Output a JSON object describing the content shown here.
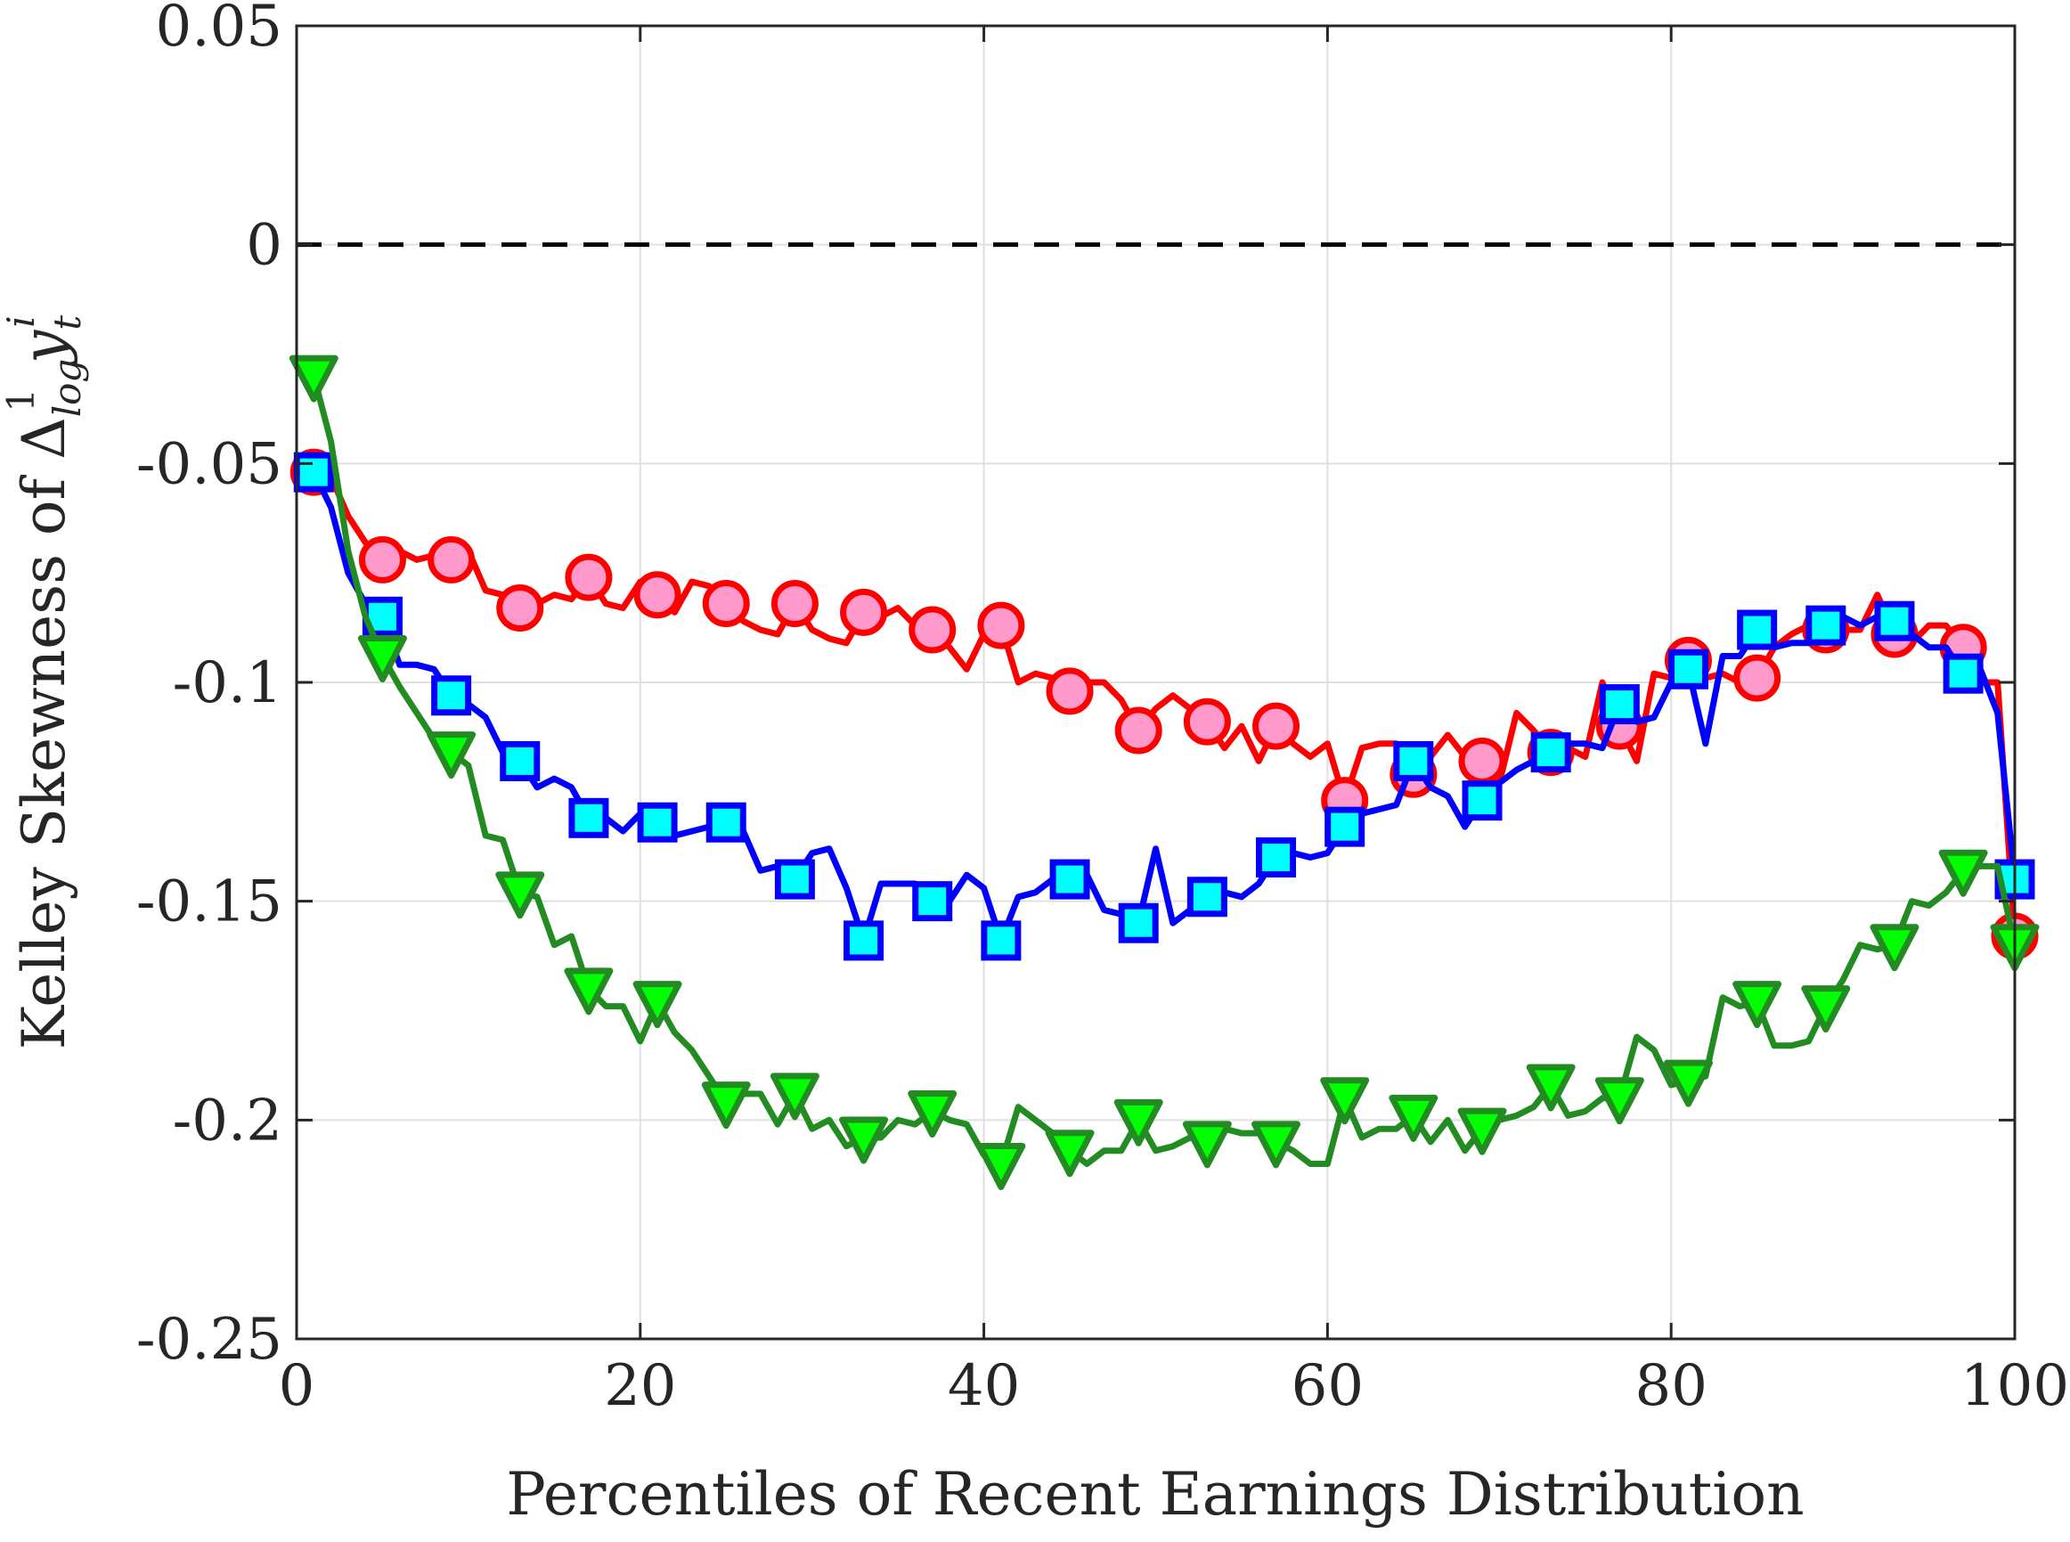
{
  "chart_data": {
    "type": "line",
    "xlabel": "Percentiles of Recent Earnings Distribution",
    "ylabel": {
      "prefix": "Kelley Skewness of Δ",
      "sub": "log",
      "sup": "1",
      "var": "y",
      "var_sub": "t",
      "var_sup": "i"
    },
    "xlim": [
      0,
      100
    ],
    "ylim": [
      -0.25,
      0.05
    ],
    "xticks": [
      0,
      20,
      40,
      60,
      80,
      100
    ],
    "xtick_labels": [
      "0",
      "20",
      "40",
      "60",
      "80",
      "100"
    ],
    "yticks": [
      0.05,
      0,
      -0.05,
      -0.1,
      -0.15,
      -0.2,
      -0.25
    ],
    "ytick_labels": [
      "0.05",
      "0",
      "-0.05",
      "-0.1",
      "-0.15",
      "-0.2",
      "-0.25"
    ],
    "grid": true,
    "reference_line": {
      "y": 0,
      "style": "dashed",
      "color": "#000000"
    },
    "series": [
      {
        "line_color": "#ff0000",
        "marker": "circle",
        "marker_fill": "#ff99cc",
        "marker_edge": "#ff0000",
        "x": [
          1,
          2,
          3,
          4,
          5,
          6,
          7,
          8,
          9,
          10,
          11,
          12,
          13,
          14,
          15,
          16,
          17,
          18,
          19,
          20,
          21,
          22,
          23,
          24,
          25,
          26,
          27,
          28,
          29,
          30,
          31,
          32,
          33,
          34,
          35,
          36,
          37,
          38,
          39,
          40,
          41,
          42,
          43,
          44,
          45,
          46,
          47,
          48,
          49,
          50,
          51,
          52,
          53,
          54,
          55,
          56,
          57,
          58,
          59,
          60,
          61,
          62,
          63,
          64,
          65,
          66,
          67,
          68,
          69,
          70,
          71,
          72,
          73,
          74,
          75,
          76,
          77,
          78,
          79,
          80,
          81,
          82,
          83,
          84,
          85,
          86,
          87,
          88,
          89,
          90,
          91,
          92,
          93,
          94,
          95,
          96,
          97,
          98,
          99,
          100
        ],
        "y": [
          -0.052,
          -0.053,
          -0.062,
          -0.068,
          -0.072,
          -0.07,
          -0.072,
          -0.071,
          -0.072,
          -0.07,
          -0.079,
          -0.08,
          -0.083,
          -0.082,
          -0.08,
          -0.081,
          -0.076,
          -0.082,
          -0.083,
          -0.077,
          -0.08,
          -0.084,
          -0.077,
          -0.078,
          -0.082,
          -0.086,
          -0.088,
          -0.089,
          -0.082,
          -0.088,
          -0.09,
          -0.091,
          -0.084,
          -0.085,
          -0.083,
          -0.087,
          -0.088,
          -0.092,
          -0.097,
          -0.089,
          -0.087,
          -0.1,
          -0.098,
          -0.099,
          -0.102,
          -0.1,
          -0.1,
          -0.104,
          -0.111,
          -0.106,
          -0.103,
          -0.106,
          -0.109,
          -0.115,
          -0.11,
          -0.118,
          -0.11,
          -0.114,
          -0.117,
          -0.114,
          -0.127,
          -0.115,
          -0.114,
          -0.114,
          -0.121,
          -0.117,
          -0.112,
          -0.117,
          -0.118,
          -0.123,
          -0.107,
          -0.111,
          -0.116,
          -0.115,
          -0.117,
          -0.1,
          -0.11,
          -0.118,
          -0.098,
          -0.099,
          -0.095,
          -0.099,
          -0.098,
          -0.1,
          -0.099,
          -0.092,
          -0.089,
          -0.087,
          -0.088,
          -0.088,
          -0.088,
          -0.08,
          -0.089,
          -0.091,
          -0.087,
          -0.087,
          -0.092,
          -0.1,
          -0.1,
          -0.158
        ]
      },
      {
        "line_color": "#0000ff",
        "marker": "square",
        "marker_fill": "#00ffff",
        "marker_edge": "#0000ff",
        "x": [
          1,
          2,
          3,
          4,
          5,
          6,
          7,
          8,
          9,
          10,
          11,
          12,
          13,
          14,
          15,
          16,
          17,
          18,
          19,
          20,
          21,
          22,
          23,
          24,
          25,
          26,
          27,
          28,
          29,
          30,
          31,
          32,
          33,
          34,
          35,
          36,
          37,
          38,
          39,
          40,
          41,
          42,
          43,
          44,
          45,
          46,
          47,
          48,
          49,
          50,
          51,
          52,
          53,
          54,
          55,
          56,
          57,
          58,
          59,
          60,
          61,
          62,
          63,
          64,
          65,
          66,
          67,
          68,
          69,
          70,
          71,
          72,
          73,
          74,
          75,
          76,
          77,
          78,
          79,
          80,
          81,
          82,
          83,
          84,
          85,
          86,
          87,
          88,
          89,
          90,
          91,
          92,
          93,
          94,
          95,
          96,
          97,
          98,
          99,
          100
        ],
        "y": [
          -0.052,
          -0.06,
          -0.075,
          -0.082,
          -0.085,
          -0.096,
          -0.096,
          -0.097,
          -0.103,
          -0.105,
          -0.108,
          -0.116,
          -0.118,
          -0.124,
          -0.122,
          -0.124,
          -0.131,
          -0.131,
          -0.134,
          -0.13,
          -0.132,
          -0.135,
          -0.134,
          -0.133,
          -0.132,
          -0.134,
          -0.143,
          -0.142,
          -0.145,
          -0.139,
          -0.138,
          -0.147,
          -0.159,
          -0.146,
          -0.146,
          -0.146,
          -0.15,
          -0.15,
          -0.144,
          -0.147,
          -0.159,
          -0.149,
          -0.148,
          -0.145,
          -0.145,
          -0.144,
          -0.152,
          -0.153,
          -0.155,
          -0.138,
          -0.155,
          -0.152,
          -0.149,
          -0.148,
          -0.149,
          -0.146,
          -0.14,
          -0.139,
          -0.14,
          -0.139,
          -0.133,
          -0.13,
          -0.129,
          -0.128,
          -0.118,
          -0.124,
          -0.126,
          -0.133,
          -0.127,
          -0.123,
          -0.12,
          -0.118,
          -0.116,
          -0.114,
          -0.114,
          -0.115,
          -0.105,
          -0.109,
          -0.108,
          -0.1,
          -0.097,
          -0.114,
          -0.094,
          -0.094,
          -0.088,
          -0.092,
          -0.091,
          -0.091,
          -0.087,
          -0.085,
          -0.087,
          -0.085,
          -0.086,
          -0.089,
          -0.092,
          -0.092,
          -0.098,
          -0.097,
          -0.107,
          -0.145
        ]
      },
      {
        "line_color": "#228b22",
        "marker": "triangle-down",
        "marker_fill": "#00ff00",
        "marker_edge": "#228b22",
        "x": [
          1,
          2,
          3,
          4,
          5,
          6,
          7,
          8,
          9,
          10,
          11,
          12,
          13,
          14,
          15,
          16,
          17,
          18,
          19,
          20,
          21,
          22,
          23,
          24,
          25,
          26,
          27,
          28,
          29,
          30,
          31,
          32,
          33,
          34,
          35,
          36,
          37,
          38,
          39,
          40,
          41,
          42,
          43,
          44,
          45,
          46,
          47,
          48,
          49,
          50,
          51,
          52,
          53,
          54,
          55,
          56,
          57,
          58,
          59,
          60,
          61,
          62,
          63,
          64,
          65,
          66,
          67,
          68,
          69,
          70,
          71,
          72,
          73,
          74,
          75,
          76,
          77,
          78,
          79,
          80,
          81,
          82,
          83,
          84,
          85,
          86,
          87,
          88,
          89,
          90,
          91,
          92,
          93,
          94,
          95,
          96,
          97,
          98,
          99,
          100
        ],
        "y": [
          -0.03,
          -0.045,
          -0.07,
          -0.085,
          -0.094,
          -0.101,
          -0.107,
          -0.113,
          -0.116,
          -0.119,
          -0.135,
          -0.136,
          -0.148,
          -0.149,
          -0.16,
          -0.158,
          -0.17,
          -0.174,
          -0.174,
          -0.182,
          -0.173,
          -0.18,
          -0.184,
          -0.19,
          -0.196,
          -0.194,
          -0.194,
          -0.201,
          -0.194,
          -0.202,
          -0.2,
          -0.206,
          -0.204,
          -0.204,
          -0.2,
          -0.201,
          -0.198,
          -0.2,
          -0.201,
          -0.208,
          -0.21,
          -0.197,
          -0.2,
          -0.203,
          -0.207,
          -0.21,
          -0.207,
          -0.207,
          -0.2,
          -0.207,
          -0.206,
          -0.204,
          -0.205,
          -0.202,
          -0.203,
          -0.203,
          -0.205,
          -0.207,
          -0.21,
          -0.21,
          -0.195,
          -0.204,
          -0.202,
          -0.202,
          -0.199,
          -0.205,
          -0.2,
          -0.207,
          -0.202,
          -0.2,
          -0.199,
          -0.197,
          -0.192,
          -0.199,
          -0.198,
          -0.195,
          -0.195,
          -0.181,
          -0.184,
          -0.192,
          -0.191,
          -0.19,
          -0.172,
          -0.174,
          -0.173,
          -0.183,
          -0.183,
          -0.182,
          -0.174,
          -0.168,
          -0.16,
          -0.161,
          -0.16,
          -0.15,
          -0.151,
          -0.148,
          -0.143,
          -0.142,
          -0.142,
          -0.16
        ]
      }
    ]
  }
}
